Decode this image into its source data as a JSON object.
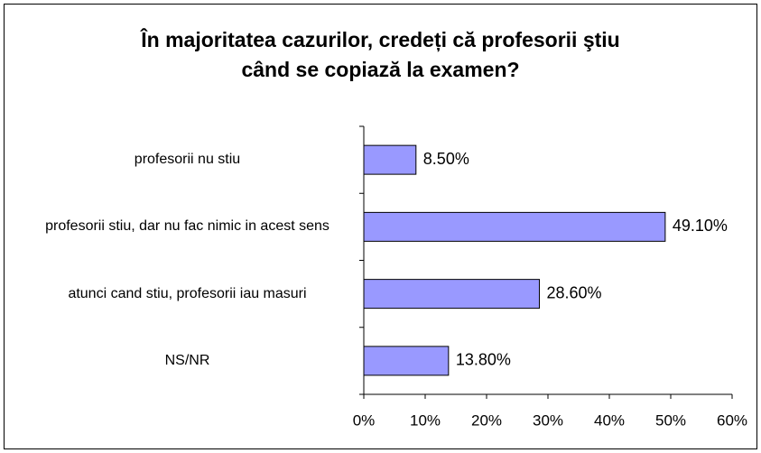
{
  "chart_data": {
    "type": "hbar",
    "title": "În majoritatea cazurilor, credeți că profesorii ştiu când se copiază la examen?",
    "categories": [
      "profesorii nu stiu",
      "profesorii stiu, dar nu fac nimic in acest sens",
      "atunci cand stiu, profesorii iau masuri",
      "NS/NR"
    ],
    "values": [
      8.5,
      49.1,
      28.6,
      13.8
    ],
    "value_labels": [
      "8.50%",
      "49.10%",
      "28.60%",
      "13.80%"
    ],
    "color": "#9999ff",
    "xlim": [
      0,
      60
    ],
    "xticks": [
      {
        "value": 0,
        "label": "0%"
      },
      {
        "value": 10,
        "label": "10%"
      },
      {
        "value": 20,
        "label": "20%"
      },
      {
        "value": 30,
        "label": "30%"
      },
      {
        "value": 40,
        "label": "40%"
      },
      {
        "value": 50,
        "label": "50%"
      },
      {
        "value": 60,
        "label": "60%"
      }
    ],
    "grid": false
  }
}
